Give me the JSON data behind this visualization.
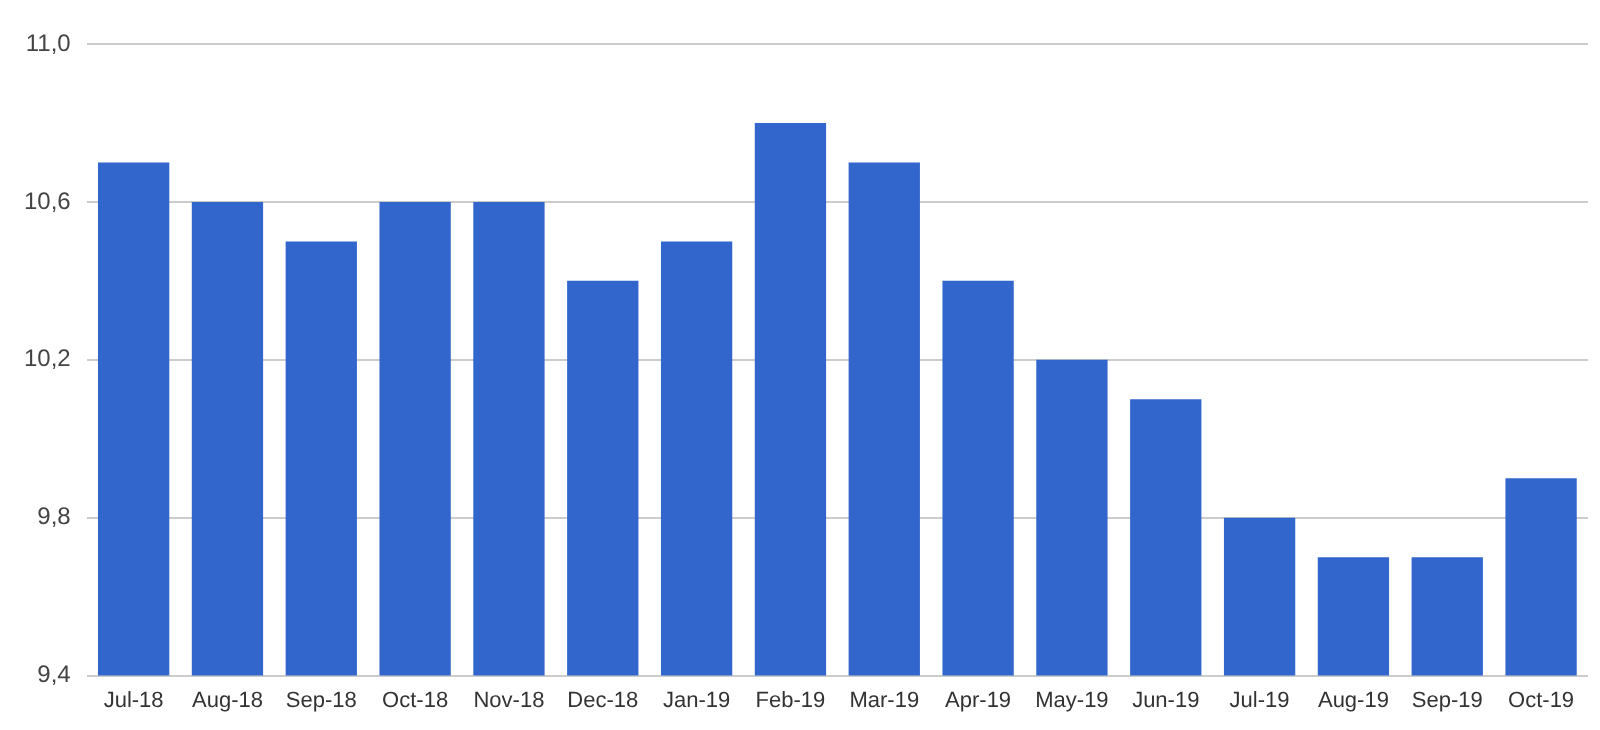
{
  "chart_data": {
    "type": "bar",
    "categories": [
      "Jul-18",
      "Aug-18",
      "Sep-18",
      "Oct-18",
      "Nov-18",
      "Dec-18",
      "Jan-19",
      "Feb-19",
      "Mar-19",
      "Apr-19",
      "May-19",
      "Jun-19",
      "Jul-19",
      "Aug-19",
      "Sep-19",
      "Oct-19"
    ],
    "values": [
      10.7,
      10.6,
      10.5,
      10.6,
      10.6,
      10.4,
      10.5,
      10.8,
      10.7,
      10.4,
      10.2,
      10.1,
      9.8,
      9.7,
      9.7,
      9.9
    ],
    "color": "#3366cc",
    "ylim": [
      9.4,
      11.0
    ],
    "yticks": [
      {
        "value": 9.4,
        "label": "9,4"
      },
      {
        "value": 9.8,
        "label": "9,8"
      },
      {
        "value": 10.2,
        "label": "10,2"
      },
      {
        "value": 10.6,
        "label": "10,6"
      },
      {
        "value": 11.0,
        "label": "11,0"
      }
    ],
    "grid": "y"
  }
}
